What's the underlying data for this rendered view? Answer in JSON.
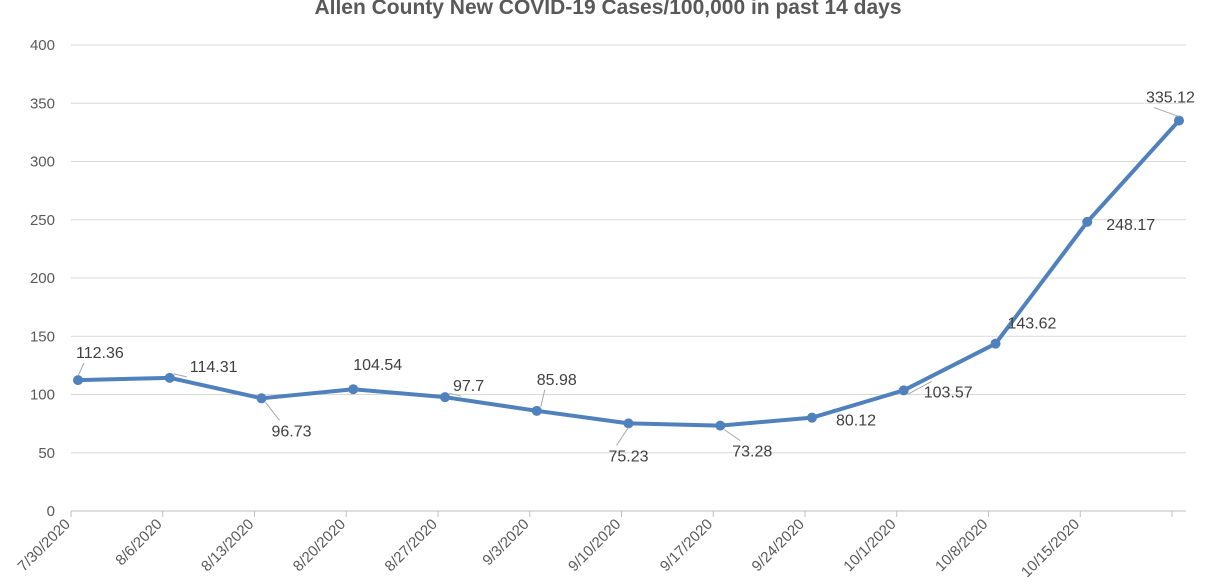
{
  "chart_data": {
    "type": "line",
    "title": "Allen County New COVID-19 Cases/100,000 in past 14 days",
    "xlabel": "",
    "ylabel": "",
    "ylim": [
      0,
      400
    ],
    "yticks": [
      0,
      50,
      100,
      150,
      200,
      250,
      300,
      350,
      400
    ],
    "grid": true,
    "legend": "none",
    "categories": [
      "7/30/2020",
      "8/6/2020",
      "8/13/2020",
      "8/20/2020",
      "8/27/2020",
      "9/3/2020",
      "9/10/2020",
      "9/17/2020",
      "9/24/2020",
      "10/1/2020",
      "10/8/2020",
      "10/15/2020",
      ""
    ],
    "series": [
      {
        "values": [
          112.36,
          114.31,
          96.73,
          104.54,
          97.7,
          85.98,
          75.23,
          73.28,
          80.12,
          103.57,
          143.62,
          248.17,
          335.12
        ],
        "data_labels": [
          "112.36",
          "114.31",
          "96.73",
          "104.54",
          "97.7",
          "85.98",
          "75.23",
          "73.28",
          "80.12",
          "103.57",
          "143.62",
          "248.17",
          "335.12"
        ],
        "color": "#4f81bd"
      }
    ]
  }
}
